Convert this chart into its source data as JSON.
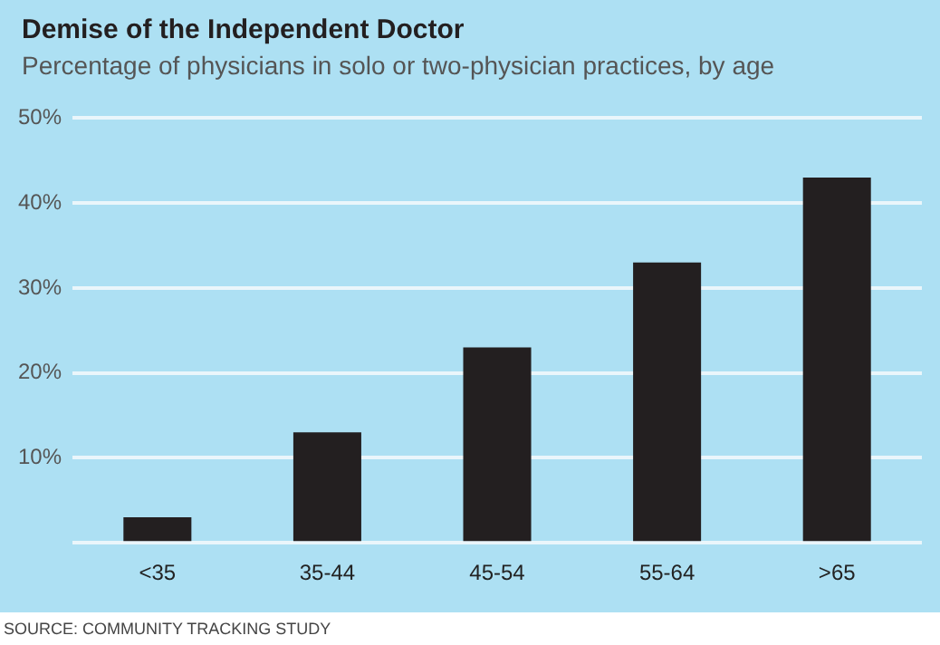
{
  "chart_data": {
    "type": "bar",
    "title": "Demise of the Independent Doctor",
    "subtitle": "Percentage of physicians in solo or two-physician practices, by age",
    "categories": [
      "<35",
      "35-44",
      "45-54",
      "55-64",
      ">65"
    ],
    "values": [
      3,
      13,
      23,
      33,
      43
    ],
    "color": "#231f20",
    "ylim": [
      0,
      50
    ],
    "yticks": [
      {
        "value": 0,
        "label": null
      },
      {
        "value": 10,
        "label": "10%"
      },
      {
        "value": 20,
        "label": "20%"
      },
      {
        "value": 30,
        "label": "30%"
      },
      {
        "value": 40,
        "label": "40%"
      },
      {
        "value": 50,
        "label": "50%"
      }
    ],
    "grid": "y",
    "legend": false,
    "annotations": [
      "SOURCE: COMMUNITY TRACKING STUDY"
    ]
  }
}
